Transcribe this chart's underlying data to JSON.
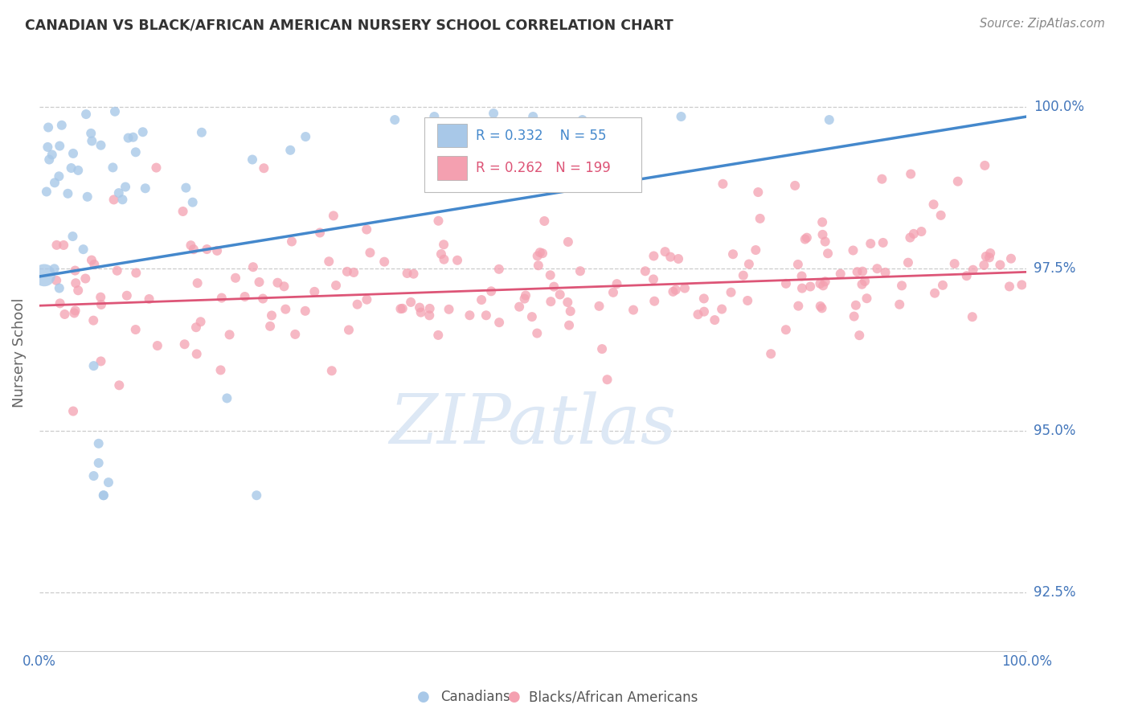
{
  "title": "CANADIAN VS BLACK/AFRICAN AMERICAN NURSERY SCHOOL CORRELATION CHART",
  "source": "Source: ZipAtlas.com",
  "ylabel": "Nursery School",
  "xlim": [
    0.0,
    1.0
  ],
  "ylim": [
    0.916,
    1.008
  ],
  "yticks": [
    0.925,
    0.95,
    0.975,
    1.0
  ],
  "ytick_labels": [
    "92.5%",
    "95.0%",
    "97.5%",
    "100.0%"
  ],
  "xtick_labels": [
    "0.0%",
    "100.0%"
  ],
  "xticks": [
    0.0,
    1.0
  ],
  "blue_R": 0.332,
  "blue_N": 55,
  "pink_R": 0.262,
  "pink_N": 199,
  "blue_color": "#a8c8e8",
  "pink_color": "#f4a0b0",
  "blue_line_color": "#4488cc",
  "pink_line_color": "#dd5577",
  "background_color": "#ffffff",
  "grid_color": "#cccccc",
  "title_color": "#333333",
  "source_color": "#888888",
  "label_color": "#4477bb",
  "watermark_text": "ZIPatlas",
  "legend_label_blue": "Canadians",
  "legend_label_pink": "Blacks/African Americans",
  "blue_trend_start_y": 0.9738,
  "blue_trend_end_y": 0.9985,
  "pink_trend_start_y": 0.9693,
  "pink_trend_end_y": 0.9745
}
